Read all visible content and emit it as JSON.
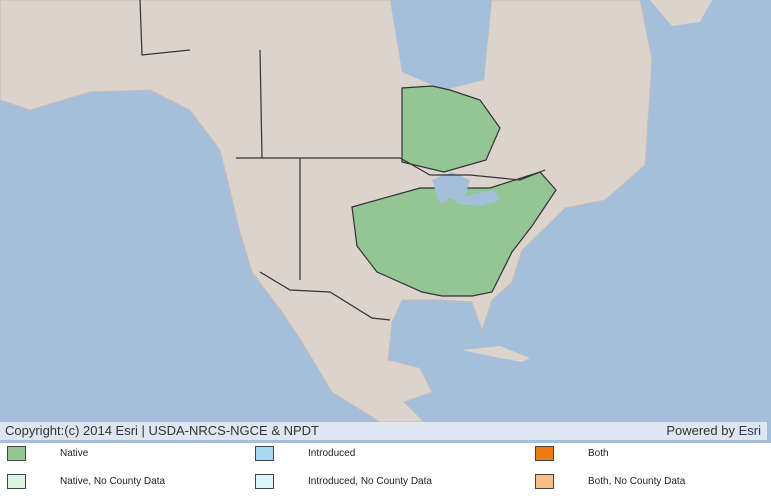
{
  "map": {
    "attribution": "Copyright:(c) 2014 Esri | USDA-NRCS-NGCE & NPDT",
    "powered_by": "Powered by",
    "powered_by_link": "Esri",
    "legend": [
      {
        "label": "Native",
        "color": "#93c595"
      },
      {
        "label": "Introduced",
        "color": "#a8d8f2"
      },
      {
        "label": "Both",
        "color": "#f07a12"
      },
      {
        "label": "Native, No County Data",
        "color": "#d9f5e0"
      },
      {
        "label": "Introduced, No County Data",
        "color": "#daf6fb"
      },
      {
        "label": "Both, No County Data",
        "color": "#f8bd88"
      }
    ]
  }
}
